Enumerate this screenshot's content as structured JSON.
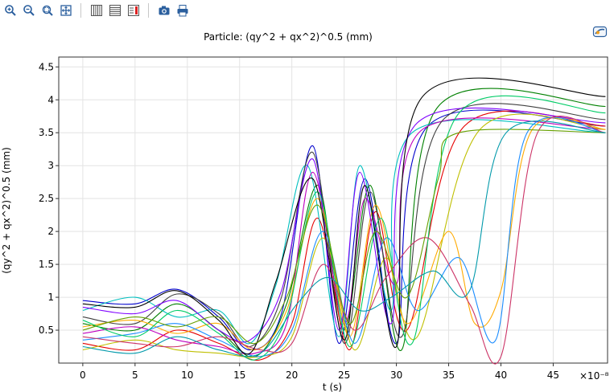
{
  "toolbar": {
    "tools": [
      {
        "name": "zoom-in-icon"
      },
      {
        "name": "zoom-out-icon"
      },
      {
        "name": "zoom-box-icon"
      },
      {
        "name": "zoom-extents-icon"
      },
      {
        "name": "x-grid-icon"
      },
      {
        "name": "y-grid-icon"
      },
      {
        "name": "legend-icon"
      },
      {
        "name": "camera-icon"
      },
      {
        "name": "print-icon"
      }
    ]
  },
  "chart_data": {
    "type": "line",
    "title": "Particle: (qy^2 + qx^2)^0.5 (mm)",
    "xlabel": "t (s)",
    "ylabel": "(qy^2 + qx^2)^0.5 (mm)",
    "x_scale_label": "×10⁻⁸",
    "xlim": [
      -2.3,
      50.2
    ],
    "ylim": [
      0,
      4.65
    ],
    "grid": true,
    "x_ticks": [
      0,
      5,
      10,
      15,
      20,
      25,
      30,
      35,
      40,
      45
    ],
    "y_ticks": [
      0.5,
      1,
      1.5,
      2,
      2.5,
      3,
      3.5,
      4,
      4.5
    ],
    "x_tick_labels": [
      "0",
      "5",
      "10",
      "15",
      "20",
      "25",
      "30",
      "35",
      "40",
      "45"
    ],
    "y_tick_labels": [
      "0.5",
      "1",
      "1.5",
      "2",
      "2.5",
      "3",
      "3.5",
      "4",
      "4.5"
    ],
    "palette": [
      "#0000cc",
      "#008000",
      "#e60000",
      "#00bfbf",
      "#bf00bf",
      "#bfbf00",
      "#3f3f3f",
      "#ffaa00",
      "#1a8cff",
      "#7f00ff",
      "#00cc66",
      "#cc3366",
      "#000000",
      "#66a000",
      "#0099aa"
    ],
    "series": [
      {
        "values": [
          [
            0,
            0.95
          ],
          [
            5,
            0.9
          ],
          [
            9,
            1.12
          ],
          [
            13,
            0.7
          ],
          [
            16,
            0.2
          ],
          [
            19,
            0.75
          ],
          [
            22,
            3.3
          ],
          [
            24.5,
            0.3
          ],
          [
            27,
            2.8
          ],
          [
            30,
            0.3
          ],
          [
            33,
            3.6
          ],
          [
            50,
            3.6
          ]
        ]
      },
      {
        "values": [
          [
            0,
            0.6
          ],
          [
            5,
            0.5
          ],
          [
            9,
            0.9
          ],
          [
            13,
            0.5
          ],
          [
            16.5,
            0.1
          ],
          [
            19.5,
            0.9
          ],
          [
            22.5,
            2.7
          ],
          [
            25,
            0.5
          ],
          [
            27.5,
            2.7
          ],
          [
            30.5,
            0.2
          ],
          [
            34,
            3.9
          ],
          [
            50,
            3.9
          ]
        ]
      },
      {
        "values": [
          [
            0,
            0.3
          ],
          [
            5,
            0.2
          ],
          [
            9,
            0.5
          ],
          [
            13,
            0.3
          ],
          [
            17,
            0.05
          ],
          [
            20,
            0.6
          ],
          [
            22.5,
            2.2
          ],
          [
            25.5,
            0.2
          ],
          [
            28,
            2.3
          ],
          [
            31,
            0.5
          ],
          [
            36.5,
            3.6
          ],
          [
            50,
            3.6
          ]
        ]
      },
      {
        "values": [
          [
            0,
            0.8
          ],
          [
            5,
            1.0
          ],
          [
            9,
            0.7
          ],
          [
            13,
            0.8
          ],
          [
            16,
            0.3
          ],
          [
            18.5,
            1.2
          ],
          [
            21.5,
            3.0
          ],
          [
            24.5,
            0.4
          ],
          [
            26.5,
            3.0
          ],
          [
            29.5,
            0.8
          ],
          [
            31.5,
            3.5
          ],
          [
            50,
            3.5
          ]
        ]
      },
      {
        "values": [
          [
            0,
            0.45
          ],
          [
            5,
            0.55
          ],
          [
            9,
            0.35
          ],
          [
            13,
            0.25
          ],
          [
            16.5,
            0.15
          ],
          [
            19.5,
            0.6
          ],
          [
            22,
            2.9
          ],
          [
            25,
            0.6
          ],
          [
            27,
            2.5
          ],
          [
            30,
            1.2
          ],
          [
            32.5,
            3.55
          ],
          [
            50,
            3.55
          ]
        ]
      },
      {
        "values": [
          [
            0,
            0.2
          ],
          [
            5,
            0.35
          ],
          [
            9,
            0.2
          ],
          [
            13,
            0.15
          ],
          [
            17,
            0.1
          ],
          [
            20,
            0.4
          ],
          [
            23,
            1.9
          ],
          [
            26,
            0.2
          ],
          [
            29,
            1.6
          ],
          [
            32,
            0.4
          ],
          [
            38,
            3.55
          ],
          [
            50,
            3.55
          ]
        ]
      },
      {
        "values": [
          [
            0,
            0.7
          ],
          [
            5,
            0.6
          ],
          [
            9,
            1.05
          ],
          [
            13,
            0.75
          ],
          [
            16,
            0.25
          ],
          [
            19,
            1.0
          ],
          [
            22,
            3.2
          ],
          [
            25,
            0.3
          ],
          [
            27.5,
            2.6
          ],
          [
            30.5,
            0.4
          ],
          [
            34.5,
            3.7
          ],
          [
            50,
            3.7
          ]
        ]
      },
      {
        "values": [
          [
            0,
            0.55
          ],
          [
            5,
            0.65
          ],
          [
            9,
            0.45
          ],
          [
            13,
            0.6
          ],
          [
            16.5,
            0.2
          ],
          [
            19.5,
            0.8
          ],
          [
            22.5,
            2.5
          ],
          [
            25.5,
            0.4
          ],
          [
            28,
            2.4
          ],
          [
            31,
            0.6
          ],
          [
            35,
            2.0
          ],
          [
            37.5,
            0.6
          ],
          [
            40,
            1.1
          ],
          [
            43,
            3.55
          ],
          [
            50,
            3.55
          ]
        ]
      },
      {
        "values": [
          [
            0,
            0.35
          ],
          [
            5,
            0.45
          ],
          [
            9,
            0.6
          ],
          [
            13,
            0.35
          ],
          [
            17,
            0.1
          ],
          [
            20,
            0.5
          ],
          [
            23,
            2.0
          ],
          [
            26,
            0.3
          ],
          [
            29,
            1.9
          ],
          [
            32,
            0.8
          ],
          [
            36,
            1.6
          ],
          [
            39.5,
            0.35
          ],
          [
            42.5,
            3.5
          ],
          [
            50,
            3.5
          ]
        ]
      },
      {
        "values": [
          [
            0,
            0.85
          ],
          [
            5,
            0.75
          ],
          [
            9,
            0.95
          ],
          [
            13,
            0.5
          ],
          [
            16,
            0.35
          ],
          [
            19,
            1.1
          ],
          [
            22,
            3.1
          ],
          [
            24.5,
            0.5
          ],
          [
            26.5,
            2.9
          ],
          [
            29.5,
            0.6
          ],
          [
            32,
            3.65
          ],
          [
            50,
            3.65
          ]
        ]
      },
      {
        "values": [
          [
            0,
            0.65
          ],
          [
            5,
            0.4
          ],
          [
            9,
            0.8
          ],
          [
            13,
            0.45
          ],
          [
            16.5,
            0.05
          ],
          [
            19.5,
            0.7
          ],
          [
            22.5,
            2.6
          ],
          [
            25.5,
            0.25
          ],
          [
            28.5,
            2.2
          ],
          [
            31.5,
            0.3
          ],
          [
            36,
            3.8
          ],
          [
            50,
            3.8
          ]
        ]
      },
      {
        "values": [
          [
            0,
            0.4
          ],
          [
            5,
            0.3
          ],
          [
            9,
            0.25
          ],
          [
            13,
            0.4
          ],
          [
            17,
            0.2
          ],
          [
            20,
            0.3
          ],
          [
            23,
            1.5
          ],
          [
            26,
            0.5
          ],
          [
            29,
            1.3
          ],
          [
            33,
            1.9
          ],
          [
            37,
            0.9
          ],
          [
            40,
            0.1
          ],
          [
            43.5,
            3.5
          ],
          [
            50,
            3.5
          ]
        ]
      },
      {
        "values": [
          [
            0,
            0.9
          ],
          [
            5,
            0.85
          ],
          [
            9,
            1.1
          ],
          [
            13,
            0.65
          ],
          [
            16,
            0.15
          ],
          [
            18.5,
            1.25
          ],
          [
            22,
            2.8
          ],
          [
            25,
            0.35
          ],
          [
            27,
            2.7
          ],
          [
            30,
            0.25
          ],
          [
            32.5,
            4.05
          ],
          [
            50,
            4.05
          ]
        ]
      },
      {
        "values": [
          [
            0,
            0.5
          ],
          [
            5,
            0.7
          ],
          [
            9,
            0.55
          ],
          [
            13,
            0.7
          ],
          [
            16.5,
            0.3
          ],
          [
            19.5,
            1.0
          ],
          [
            22.5,
            2.4
          ],
          [
            25.5,
            0.6
          ],
          [
            28,
            2.0
          ],
          [
            31,
            1.0
          ],
          [
            34,
            2.8
          ],
          [
            36,
            3.5
          ],
          [
            50,
            3.5
          ]
        ]
      },
      {
        "values": [
          [
            0,
            0.25
          ],
          [
            5,
            0.15
          ],
          [
            9,
            0.4
          ],
          [
            13,
            0.2
          ],
          [
            17,
            0.15
          ],
          [
            20.5,
            0.9
          ],
          [
            23.5,
            1.3
          ],
          [
            26.5,
            0.8
          ],
          [
            29.5,
            1.0
          ],
          [
            33.5,
            1.4
          ],
          [
            37,
            1.1
          ],
          [
            40.5,
            3.5
          ],
          [
            50,
            3.5
          ]
        ]
      }
    ]
  }
}
